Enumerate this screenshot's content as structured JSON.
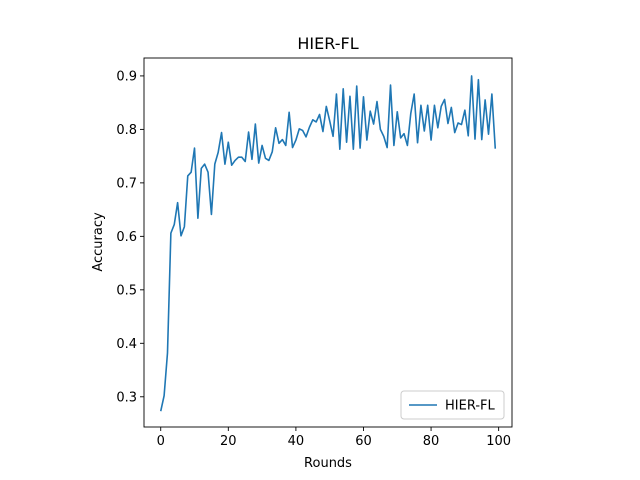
{
  "chart_data": {
    "type": "line",
    "title": "HIER-FL",
    "xlabel": "Rounds",
    "ylabel": "Accuracy",
    "xlim": [
      -4.95,
      103.95
    ],
    "ylim": [
      0.2435,
      0.9335
    ],
    "xticks": [
      0,
      20,
      40,
      60,
      80,
      100
    ],
    "xtick_labels": [
      "0",
      "20",
      "40",
      "60",
      "80",
      "100"
    ],
    "yticks": [
      0.3,
      0.4,
      0.5,
      0.6,
      0.7,
      0.8,
      0.9
    ],
    "ytick_labels": [
      "0.3",
      "0.4",
      "0.5",
      "0.6",
      "0.7",
      "0.8",
      "0.9"
    ],
    "grid": false,
    "legend_position": "lower right",
    "series": [
      {
        "name": "HIER-FL",
        "color": "#1f77b4",
        "x": [
          0,
          1,
          2,
          3,
          4,
          5,
          6,
          7,
          8,
          9,
          10,
          11,
          12,
          13,
          14,
          15,
          16,
          17,
          18,
          19,
          20,
          21,
          22,
          23,
          24,
          25,
          26,
          27,
          28,
          29,
          30,
          31,
          32,
          33,
          34,
          35,
          36,
          37,
          38,
          39,
          40,
          41,
          42,
          43,
          44,
          45,
          46,
          47,
          48,
          49,
          50,
          51,
          52,
          53,
          54,
          55,
          56,
          57,
          58,
          59,
          60,
          61,
          62,
          63,
          64,
          65,
          66,
          67,
          68,
          69,
          70,
          71,
          72,
          73,
          74,
          75,
          76,
          77,
          78,
          79,
          80,
          81,
          82,
          83,
          84,
          85,
          86,
          87,
          88,
          89,
          90,
          91,
          92,
          93,
          94,
          95,
          96,
          97,
          98,
          99
        ],
        "y": [
          0.273,
          0.302,
          0.382,
          0.606,
          0.622,
          0.663,
          0.601,
          0.618,
          0.713,
          0.72,
          0.765,
          0.634,
          0.727,
          0.735,
          0.72,
          0.641,
          0.735,
          0.757,
          0.794,
          0.735,
          0.776,
          0.733,
          0.742,
          0.748,
          0.748,
          0.74,
          0.795,
          0.744,
          0.81,
          0.737,
          0.77,
          0.746,
          0.742,
          0.758,
          0.803,
          0.774,
          0.781,
          0.77,
          0.832,
          0.766,
          0.78,
          0.801,
          0.798,
          0.786,
          0.804,
          0.818,
          0.814,
          0.828,
          0.796,
          0.843,
          0.816,
          0.787,
          0.866,
          0.763,
          0.876,
          0.776,
          0.862,
          0.763,
          0.881,
          0.765,
          0.861,
          0.78,
          0.834,
          0.81,
          0.852,
          0.8,
          0.787,
          0.766,
          0.883,
          0.77,
          0.833,
          0.784,
          0.792,
          0.77,
          0.83,
          0.866,
          0.775,
          0.845,
          0.797,
          0.845,
          0.78,
          0.845,
          0.803,
          0.843,
          0.856,
          0.811,
          0.841,
          0.794,
          0.812,
          0.809,
          0.836,
          0.788,
          0.9,
          0.782,
          0.893,
          0.781,
          0.855,
          0.791,
          0.866,
          0.764
        ]
      }
    ]
  }
}
